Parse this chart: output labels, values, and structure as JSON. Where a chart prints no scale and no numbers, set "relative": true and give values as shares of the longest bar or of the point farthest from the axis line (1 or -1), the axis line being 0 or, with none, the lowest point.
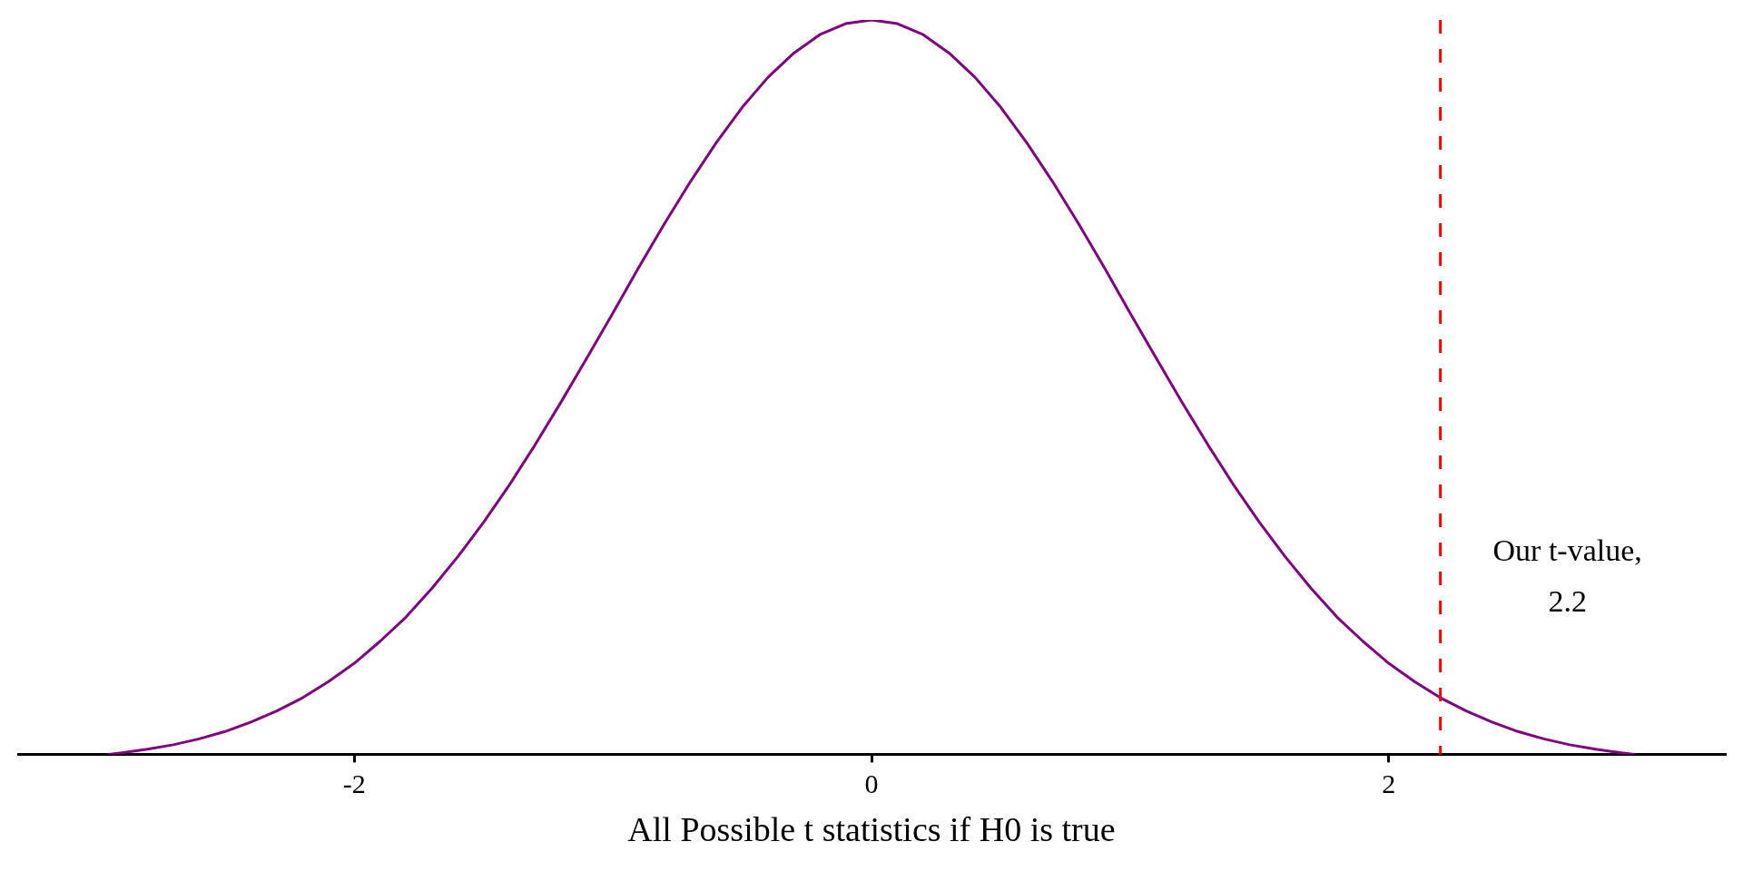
{
  "chart_data": {
    "type": "line",
    "relative": true,
    "xlabel": "All Possible t statistics if H0 is true",
    "x": [
      -2.95,
      -2.9,
      -2.8,
      -2.7,
      -2.6,
      -2.5,
      -2.4,
      -2.3,
      -2.2,
      -2.1,
      -2.0,
      -1.9,
      -1.8,
      -1.7,
      -1.6,
      -1.5,
      -1.4,
      -1.3,
      -1.2,
      -1.1,
      -1.0,
      -0.9,
      -0.8,
      -0.7,
      -0.6,
      -0.5,
      -0.4,
      -0.3,
      -0.2,
      -0.1,
      0,
      0.1,
      0.2,
      0.3,
      0.4,
      0.5,
      0.6,
      0.7,
      0.8,
      0.9,
      1.0,
      1.1,
      1.2,
      1.3,
      1.4,
      1.5,
      1.6,
      1.7,
      1.8,
      1.9,
      2.0,
      2.1,
      2.2,
      2.3,
      2.4,
      2.5,
      2.6,
      2.7,
      2.8,
      2.9,
      2.95
    ],
    "series": [
      {
        "color": "#800080",
        "values": [
          0,
          0.002,
          0.007,
          0.013,
          0.021,
          0.031,
          0.044,
          0.059,
          0.077,
          0.099,
          0.124,
          0.154,
          0.187,
          0.226,
          0.269,
          0.316,
          0.367,
          0.422,
          0.48,
          0.54,
          0.601,
          0.663,
          0.723,
          0.78,
          0.833,
          0.881,
          0.922,
          0.955,
          0.98,
          0.995,
          1,
          0.995,
          0.98,
          0.955,
          0.922,
          0.881,
          0.833,
          0.78,
          0.723,
          0.663,
          0.601,
          0.54,
          0.48,
          0.422,
          0.367,
          0.316,
          0.269,
          0.226,
          0.187,
          0.154,
          0.124,
          0.099,
          0.077,
          0.059,
          0.044,
          0.031,
          0.021,
          0.013,
          0.007,
          0.002,
          0
        ]
      }
    ],
    "xlim": [
      -3.3,
      3.3
    ],
    "xticks": [
      -2,
      0,
      2
    ],
    "ref_lines": [
      {
        "axis": "x",
        "value": 2.2,
        "label": "Our t-value,\n2.2",
        "color": "#ff0000",
        "line_style": "dashed"
      }
    ],
    "legend": false
  }
}
